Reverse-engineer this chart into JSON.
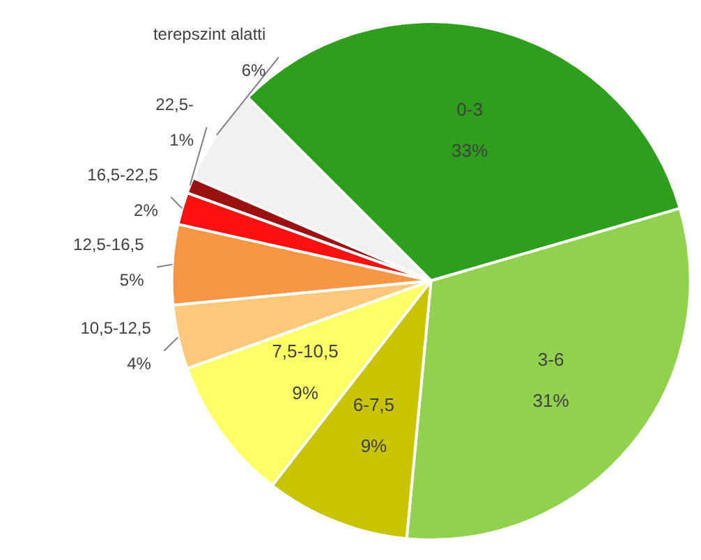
{
  "chart_data": {
    "type": "pie",
    "categories": [
      "0-3",
      "3-6",
      "6-7,5",
      "7,5-10,5",
      "10,5-12,5",
      "12,5-16,5",
      "16,5-22,5",
      "22,5-",
      "terepszint alatti"
    ],
    "values": [
      33,
      31,
      9,
      9,
      4,
      5,
      2,
      1,
      6
    ],
    "value_labels": [
      "33%",
      "31%",
      "9%",
      "9%",
      "4%",
      "5%",
      "2%",
      "1%",
      "6%"
    ],
    "colors": [
      "#2e9e1c",
      "#92d050",
      "#c8c400",
      "#ffff66",
      "#fdc87a",
      "#f79646",
      "#ff1010",
      "#9b1010",
      "#f0f0f0"
    ]
  }
}
